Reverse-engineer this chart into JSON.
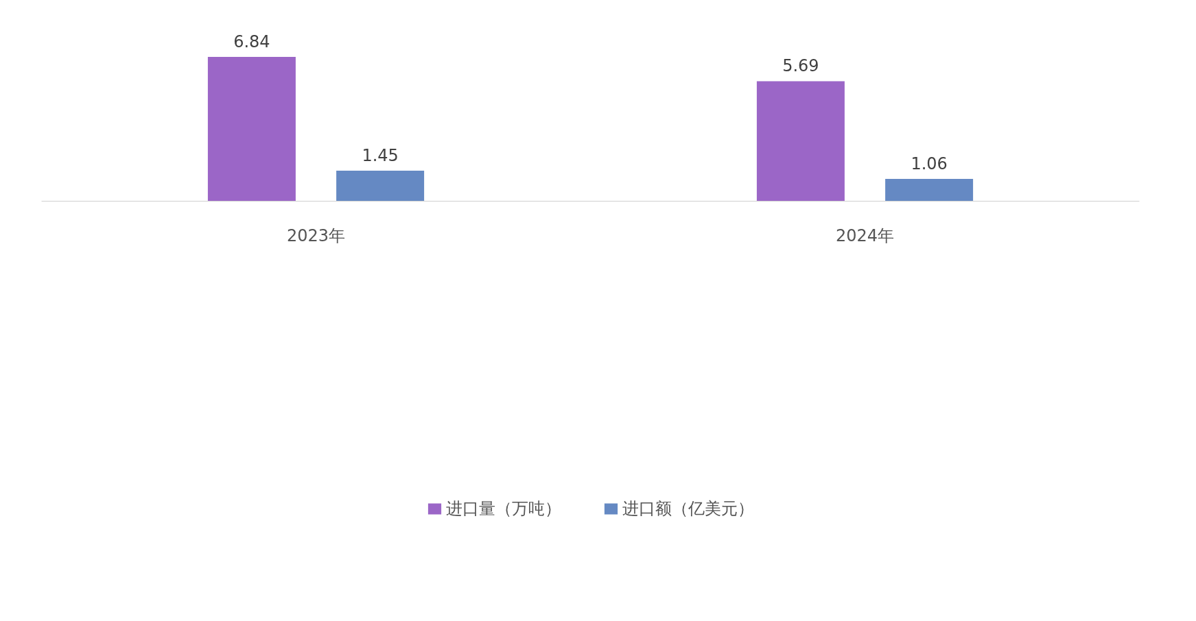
{
  "chart_data": {
    "type": "bar",
    "categories": [
      "2023年",
      "2024年"
    ],
    "series": [
      {
        "name": "进口量（万吨）",
        "color": "#8a4bbd",
        "values": [
          6.84,
          5.69
        ]
      },
      {
        "name": "进口额（亿美元）",
        "color": "#4a74b8",
        "values": [
          1.45,
          1.06
        ]
      }
    ],
    "data_labels": true,
    "grid": false,
    "legend": "bottom",
    "tick_labels": "x"
  }
}
